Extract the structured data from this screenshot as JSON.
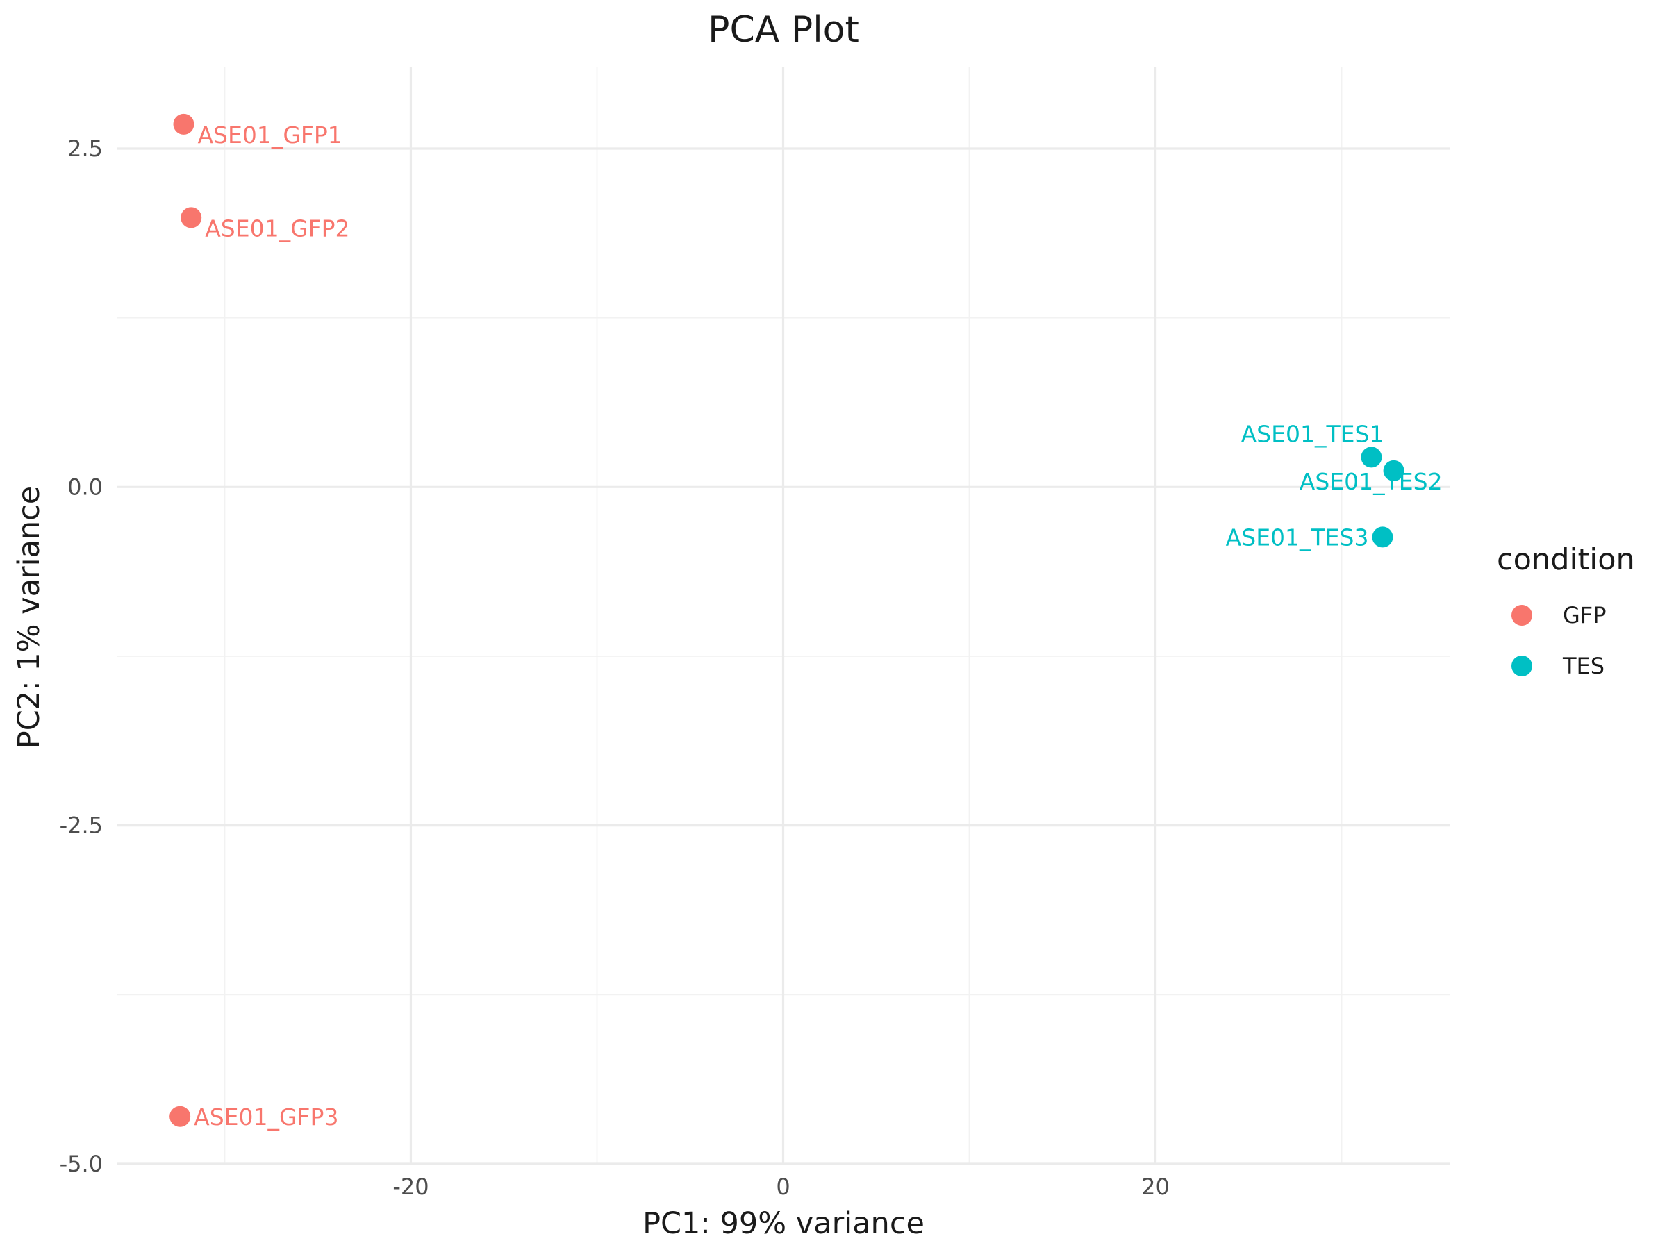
{
  "chart_data": {
    "type": "scatter",
    "title": "PCA Plot",
    "xlabel": "PC1: 99% variance",
    "ylabel": "PC2: 1% variance",
    "xlim": [
      -35.8,
      35.8
    ],
    "ylim": [
      -5.0,
      3.1
    ],
    "x_ticks": [
      {
        "value": -20,
        "label": "-20"
      },
      {
        "value": 0,
        "label": "0"
      },
      {
        "value": 20,
        "label": "20"
      }
    ],
    "x_minor_ticks": [
      -30,
      -10,
      10,
      30
    ],
    "y_ticks": [
      {
        "value": 2.5,
        "label": "2.5"
      },
      {
        "value": 0.0,
        "label": "0.0"
      },
      {
        "value": -2.5,
        "label": "-2.5"
      },
      {
        "value": -5.0,
        "label": "-5.0"
      }
    ],
    "y_minor_ticks": [
      1.25,
      -1.25,
      -3.75
    ],
    "grid": true,
    "legend": {
      "title": "condition",
      "position": "right",
      "entries": [
        {
          "label": "GFP",
          "color": "#F8766D"
        },
        {
          "label": "TES",
          "color": "#00BFC4"
        }
      ]
    },
    "series": [
      {
        "name": "GFP",
        "color": "#F8766D",
        "points": [
          {
            "x": -32.2,
            "y": 2.68,
            "label": "ASE01_GFP1",
            "label_anchor": "start",
            "label_side": "below"
          },
          {
            "x": -31.8,
            "y": 1.99,
            "label": "ASE01_GFP2",
            "label_anchor": "start",
            "label_side": "below"
          },
          {
            "x": -32.4,
            "y": -4.65,
            "label": "ASE01_GFP3",
            "label_anchor": "start",
            "label_side": "level"
          }
        ]
      },
      {
        "name": "TES",
        "color": "#00BFC4",
        "points": [
          {
            "x": 31.6,
            "y": 0.22,
            "label": "ASE01_TES1",
            "label_anchor": "end",
            "label_side": "above"
          },
          {
            "x": 32.8,
            "y": 0.12,
            "label": "ASE01_TES2",
            "label_anchor": "end",
            "label_side": "below"
          },
          {
            "x": 32.2,
            "y": -0.37,
            "label": "ASE01_TES3",
            "label_anchor": "end",
            "label_side": "level"
          }
        ]
      }
    ]
  }
}
